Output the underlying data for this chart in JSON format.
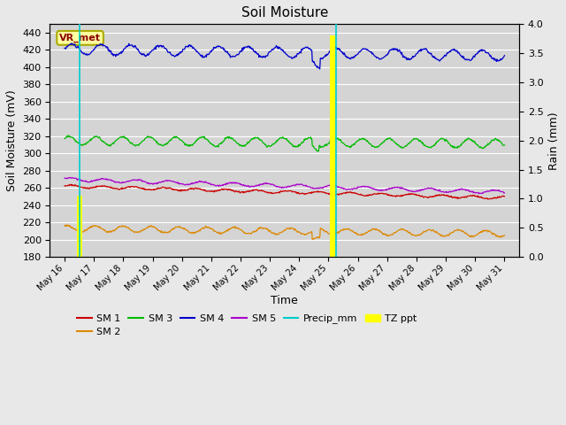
{
  "title": "Soil Moisture",
  "xlabel": "Time",
  "ylabel_left": "Soil Moisture (mV)",
  "ylabel_right": "Rain (mm)",
  "ylim_left": [
    180,
    450
  ],
  "ylim_right": [
    0.0,
    4.0
  ],
  "background_color": "#e8e8e8",
  "plot_bg_color": "#d4d4d4",
  "annotation_label": "VR_met",
  "annotation_bg": "#ffffa0",
  "annotation_border": "#aaaa00",
  "annotation_text_color": "#8b0000",
  "x_tick_labels": [
    "May 16",
    "May 17",
    "May 18",
    "May 19",
    "May 20",
    "May 21",
    "May 22",
    "May 23",
    "May 24",
    "May 25",
    "May 26",
    "May 27",
    "May 28",
    "May 29",
    "May 30",
    "May 31"
  ],
  "sm1_color": "#cc0000",
  "sm2_color": "#dd8800",
  "sm3_color": "#00bb00",
  "sm4_color": "#0000cc",
  "sm5_color": "#aa00cc",
  "precip_color": "#00cccc",
  "tz_ppt_color": "#ffff00",
  "yticks_left": [
    180,
    200,
    220,
    240,
    260,
    280,
    300,
    320,
    340,
    360,
    380,
    400,
    420,
    440
  ],
  "yticks_right": [
    0.0,
    0.5,
    1.0,
    1.5,
    2.0,
    2.5,
    3.0,
    3.5,
    4.0
  ]
}
